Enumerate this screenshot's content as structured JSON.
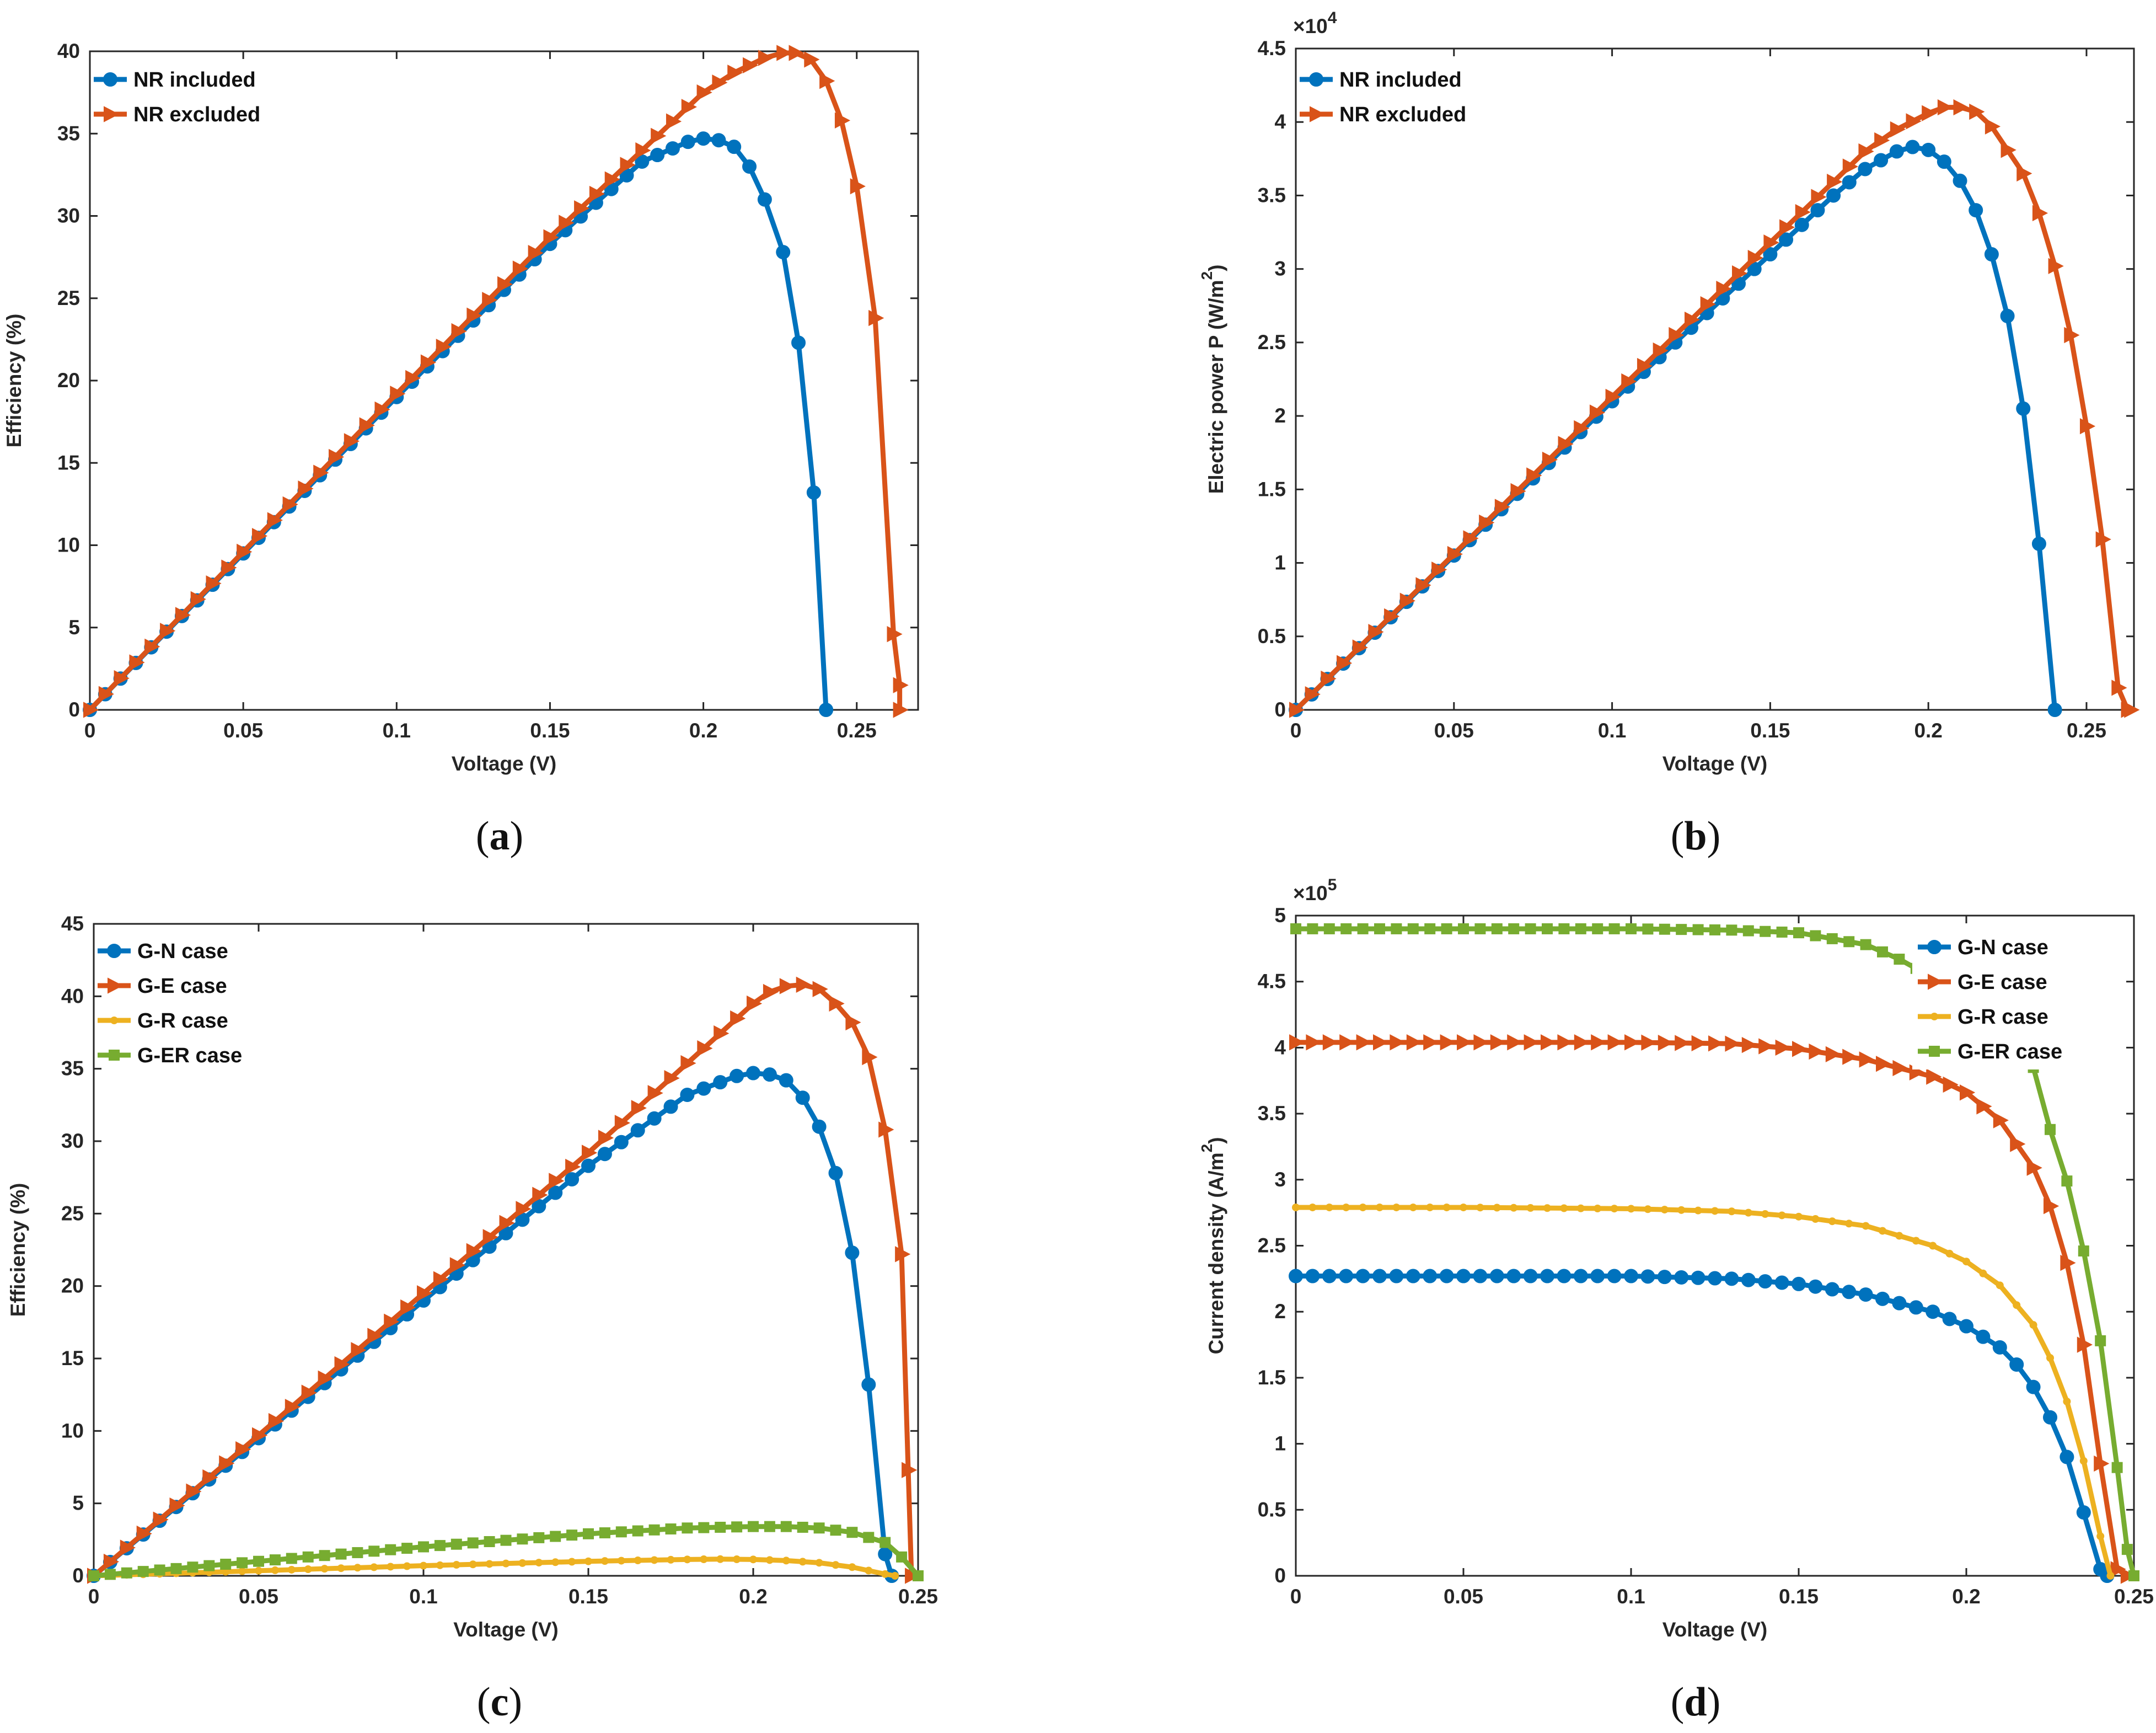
{
  "figure": {
    "colors": {
      "blue": "#0072BD",
      "orange": "#D95319",
      "yellow": "#EDB120",
      "green": "#77AC30"
    }
  },
  "chart_data": [
    {
      "panel": "a",
      "type": "line",
      "caption": {
        "open": "(",
        "letter": "a",
        "close": ")"
      },
      "xlabel": "Voltage (V)",
      "ylabel": "Efficiency (%)",
      "xlim": [
        0,
        0.27
      ],
      "ylim": [
        0,
        40
      ],
      "xticks": [
        0,
        0.05,
        0.1,
        0.15,
        0.2,
        0.25
      ],
      "xtick_labels": [
        "0",
        "0.05",
        "0.1",
        "0.15",
        "0.2",
        "0.25"
      ],
      "yticks": [
        0,
        5,
        10,
        15,
        20,
        25,
        30,
        35,
        40
      ],
      "ytick_labels": [
        "0",
        "5",
        "10",
        "15",
        "20",
        "25",
        "30",
        "35",
        "40"
      ],
      "exponent": null,
      "legend_position": "top-left",
      "series": [
        {
          "name": "NR included",
          "color": "#0072BD",
          "marker": "circle",
          "x": [
            0,
            0.05,
            0.1,
            0.15,
            0.18,
            0.195,
            0.2,
            0.205,
            0.21,
            0.215,
            0.22,
            0.226,
            0.231,
            0.236,
            0.24
          ],
          "y": [
            0,
            9.5,
            19,
            28.3,
            33.3,
            34.5,
            34.7,
            34.6,
            34.2,
            33,
            31,
            27.8,
            22.3,
            13.2,
            0
          ]
        },
        {
          "name": "NR excluded",
          "color": "#D95319",
          "marker": "triangle-right",
          "x": [
            0,
            0.05,
            0.1,
            0.15,
            0.2,
            0.21,
            0.22,
            0.226,
            0.23,
            0.235,
            0.24,
            0.245,
            0.25,
            0.256,
            0.262,
            0.264,
            0.264
          ],
          "y": [
            0,
            9.6,
            19.2,
            28.7,
            37.5,
            38.7,
            39.6,
            39.9,
            39.9,
            39.5,
            38.2,
            35.8,
            31.8,
            23.8,
            4.6,
            1.5,
            0
          ]
        }
      ]
    },
    {
      "panel": "b",
      "type": "line",
      "caption": {
        "open": "(",
        "letter": "b",
        "close": ")"
      },
      "xlabel": "Voltage (V)",
      "ylabel": "Electric power P (W/m",
      "ylabel_superscript": "2",
      "ylabel_close": ")",
      "xlim": [
        0,
        0.265
      ],
      "ylim": [
        0,
        4.5
      ],
      "xticks": [
        0,
        0.05,
        0.1,
        0.15,
        0.2,
        0.25
      ],
      "xtick_labels": [
        "0",
        "0.05",
        "0.1",
        "0.15",
        "0.2",
        "0.25"
      ],
      "yticks": [
        0,
        0.5,
        1,
        1.5,
        2,
        2.5,
        3,
        3.5,
        4,
        4.5
      ],
      "ytick_labels": [
        "0",
        "0.5",
        "1",
        "1.5",
        "2",
        "2.5",
        "3",
        "3.5",
        "4",
        "4.5"
      ],
      "exponent": {
        "base": "×10",
        "power": "4"
      },
      "legend_position": "top-left",
      "series": [
        {
          "name": "NR included",
          "color": "#0072BD",
          "marker": "circle",
          "x": [
            0,
            0.05,
            0.1,
            0.15,
            0.17,
            0.18,
            0.19,
            0.195,
            0.2,
            0.205,
            0.21,
            0.215,
            0.22,
            0.225,
            0.23,
            0.235,
            0.24
          ],
          "y": [
            0,
            1.05,
            2.1,
            3.1,
            3.5,
            3.68,
            3.8,
            3.83,
            3.81,
            3.73,
            3.6,
            3.4,
            3.1,
            2.68,
            2.05,
            1.13,
            0
          ]
        },
        {
          "name": "NR excluded",
          "color": "#D95319",
          "marker": "triangle-right",
          "x": [
            0,
            0.05,
            0.1,
            0.15,
            0.18,
            0.19,
            0.2,
            0.205,
            0.21,
            0.215,
            0.22,
            0.23,
            0.235,
            0.24,
            0.245,
            0.25,
            0.255,
            0.26,
            0.263,
            0.264
          ],
          "y": [
            0,
            1.06,
            2.13,
            3.18,
            3.8,
            3.95,
            4.06,
            4.1,
            4.1,
            4.07,
            3.97,
            3.65,
            3.38,
            3.02,
            2.55,
            1.93,
            1.16,
            0.15,
            0,
            0
          ]
        }
      ]
    },
    {
      "panel": "c",
      "type": "line",
      "caption": {
        "open": "(",
        "letter": "c",
        "close": ")"
      },
      "xlabel": "Voltage (V)",
      "ylabel": "Efficiency (%)",
      "xlim": [
        0,
        0.25
      ],
      "ylim": [
        0,
        45
      ],
      "xticks": [
        0,
        0.05,
        0.1,
        0.15,
        0.2,
        0.25
      ],
      "xtick_labels": [
        "0",
        "0.05",
        "0.1",
        "0.15",
        "0.2",
        "0.25"
      ],
      "yticks": [
        0,
        5,
        10,
        15,
        20,
        25,
        30,
        35,
        40,
        45
      ],
      "ytick_labels": [
        "0",
        "5",
        "10",
        "15",
        "20",
        "25",
        "30",
        "35",
        "40",
        "45"
      ],
      "exponent": null,
      "legend_position": "top-left",
      "series": [
        {
          "name": "G-N case",
          "color": "#0072BD",
          "marker": "circle",
          "x": [
            0,
            0.05,
            0.1,
            0.15,
            0.18,
            0.195,
            0.2,
            0.205,
            0.21,
            0.215,
            0.22,
            0.225,
            0.23,
            0.235,
            0.24,
            0.242
          ],
          "y": [
            0,
            9.5,
            19,
            28.3,
            33.2,
            34.5,
            34.7,
            34.6,
            34.2,
            33,
            31,
            27.8,
            22.3,
            13.2,
            1.5,
            0
          ]
        },
        {
          "name": "G-E case",
          "color": "#D95319",
          "marker": "triangle-right",
          "x": [
            0,
            0.05,
            0.1,
            0.15,
            0.2,
            0.205,
            0.21,
            0.215,
            0.22,
            0.225,
            0.23,
            0.235,
            0.24,
            0.245,
            0.247,
            0.248
          ],
          "y": [
            0,
            9.7,
            19.5,
            29.2,
            39.5,
            40.3,
            40.7,
            40.8,
            40.5,
            39.5,
            38.2,
            35.8,
            30.8,
            22.2,
            7.3,
            0
          ]
        },
        {
          "name": "G-R case",
          "color": "#EDB120",
          "marker": "dot",
          "x": [
            0,
            0.05,
            0.1,
            0.15,
            0.18,
            0.19,
            0.2,
            0.21,
            0.22,
            0.23,
            0.24,
            0.243
          ],
          "y": [
            0,
            0.35,
            0.7,
            1.0,
            1.13,
            1.15,
            1.13,
            1.05,
            0.9,
            0.6,
            0.12,
            0
          ]
        },
        {
          "name": "G-ER case",
          "color": "#77AC30",
          "marker": "square",
          "x": [
            0,
            0.05,
            0.1,
            0.15,
            0.18,
            0.2,
            0.21,
            0.22,
            0.23,
            0.24,
            0.245,
            0.25
          ],
          "y": [
            0,
            1.0,
            2.0,
            2.9,
            3.3,
            3.4,
            3.4,
            3.3,
            3.0,
            2.3,
            1.3,
            0
          ]
        }
      ]
    },
    {
      "panel": "d",
      "type": "line",
      "caption": {
        "open": "(",
        "letter": "d",
        "close": ")"
      },
      "xlabel": "Voltage (V)",
      "ylabel": "Current density (A/m",
      "ylabel_superscript": "2",
      "ylabel_close": ")",
      "xlim": [
        0,
        0.25
      ],
      "ylim": [
        0,
        5
      ],
      "xticks": [
        0,
        0.05,
        0.1,
        0.15,
        0.2,
        0.25
      ],
      "xtick_labels": [
        "0",
        "0.05",
        "0.1",
        "0.15",
        "0.2",
        "0.25"
      ],
      "yticks": [
        0,
        0.5,
        1,
        1.5,
        2,
        2.5,
        3,
        3.5,
        4,
        4.5,
        5
      ],
      "ytick_labels": [
        "0",
        "0.5",
        "1",
        "1.5",
        "2",
        "2.5",
        "3",
        "3.5",
        "4",
        "4.5",
        "5"
      ],
      "exponent": {
        "base": "×10",
        "power": "5"
      },
      "legend_position": "top-right",
      "legend_covers_data": true,
      "series": [
        {
          "name": "G-N case",
          "color": "#0072BD",
          "marker": "circle",
          "x": [
            0,
            0.05,
            0.1,
            0.13,
            0.15,
            0.17,
            0.19,
            0.2,
            0.21,
            0.215,
            0.22,
            0.225,
            0.23,
            0.235,
            0.24,
            0.242
          ],
          "y": [
            2.27,
            2.27,
            2.27,
            2.25,
            2.21,
            2.13,
            2.0,
            1.89,
            1.73,
            1.6,
            1.43,
            1.2,
            0.9,
            0.48,
            0.05,
            0
          ]
        },
        {
          "name": "G-E case",
          "color": "#D95319",
          "marker": "triangle-right",
          "x": [
            0,
            0.05,
            0.1,
            0.13,
            0.15,
            0.17,
            0.19,
            0.2,
            0.21,
            0.22,
            0.225,
            0.23,
            0.235,
            0.24,
            0.245,
            0.248
          ],
          "y": [
            4.04,
            4.04,
            4.04,
            4.03,
            3.99,
            3.91,
            3.78,
            3.66,
            3.45,
            3.09,
            2.8,
            2.37,
            1.75,
            0.85,
            0.05,
            0
          ]
        },
        {
          "name": "G-R case",
          "color": "#EDB120",
          "marker": "dot",
          "x": [
            0,
            0.05,
            0.1,
            0.13,
            0.15,
            0.17,
            0.19,
            0.2,
            0.21,
            0.22,
            0.225,
            0.23,
            0.235,
            0.24,
            0.243
          ],
          "y": [
            2.79,
            2.79,
            2.78,
            2.76,
            2.72,
            2.65,
            2.5,
            2.38,
            2.2,
            1.9,
            1.65,
            1.32,
            0.87,
            0.3,
            0
          ]
        },
        {
          "name": "G-ER case",
          "color": "#77AC30",
          "marker": "square",
          "x": [
            0,
            0.05,
            0.1,
            0.13,
            0.15,
            0.17,
            0.18,
            0.185,
            0.22,
            0.225,
            0.23,
            0.235,
            0.24,
            0.245,
            0.248,
            0.25
          ],
          "y": [
            4.9,
            4.9,
            4.9,
            4.89,
            4.87,
            4.78,
            4.67,
            4.6,
            3.85,
            3.38,
            2.99,
            2.46,
            1.78,
            0.82,
            0.2,
            0
          ]
        }
      ]
    }
  ]
}
